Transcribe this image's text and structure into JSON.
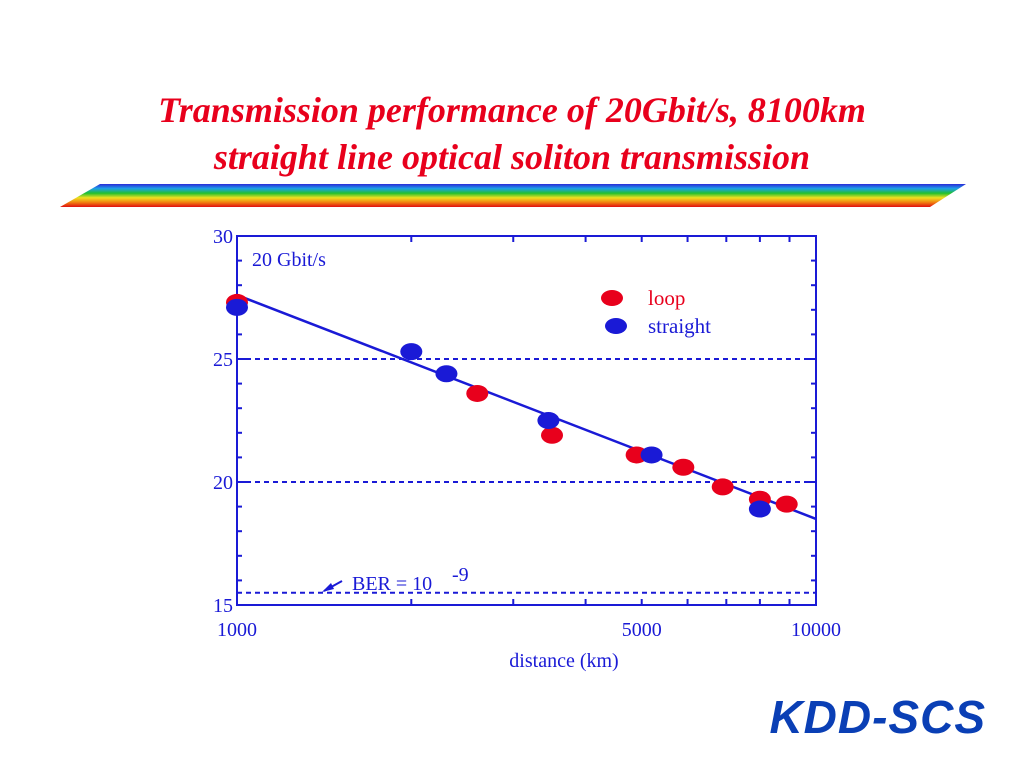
{
  "slide": {
    "title_line1": "Transmission performance of 20Gbit/s, 8100km",
    "title_line2": "straight line optical soliton transmission",
    "logo": "KDD-SCS"
  },
  "colors": {
    "title": "#e8001c",
    "axis": "#1a1ad6",
    "loop": "#e8001c",
    "straight": "#1a1ad6",
    "logo": "#0a3fb5"
  },
  "chart_data": {
    "type": "scatter",
    "xlabel": "distance (km)",
    "ylabel": "",
    "x_scale": "log",
    "xlim": [
      1000,
      10000
    ],
    "ylim": [
      15,
      30
    ],
    "x_tick_labels": [
      {
        "value": 1000,
        "label": "1000"
      },
      {
        "value": 5000,
        "label": "5000"
      },
      {
        "value": 10000,
        "label": "10000"
      }
    ],
    "y_tick_labels": [
      {
        "value": 15,
        "label": "15"
      },
      {
        "value": 20,
        "label": "20"
      },
      {
        "value": 25,
        "label": "25"
      },
      {
        "value": 30,
        "label": "30"
      }
    ],
    "grid_y_dashed": [
      20,
      25
    ],
    "annotation_rate": "20 Gbit/s",
    "ber_label": "BER = 10",
    "ber_exponent": "-9",
    "ber_level": 15.5,
    "legend_position": "top-right",
    "series": [
      {
        "name": "loop",
        "color": "#e8001c",
        "x": [
          1000,
          2600,
          3500,
          4900,
          5900,
          6900,
          8000,
          8900
        ],
        "y": [
          27.3,
          23.6,
          21.9,
          21.1,
          20.6,
          19.8,
          19.3,
          19.1
        ]
      },
      {
        "name": "straight",
        "color": "#1a1ad6",
        "x": [
          1000,
          2000,
          2300,
          3450,
          5200,
          8000
        ],
        "y": [
          27.1,
          25.3,
          24.4,
          22.5,
          21.1,
          18.9
        ]
      }
    ],
    "fit_line": {
      "x": [
        1000,
        10000
      ],
      "y": [
        27.6,
        18.5
      ]
    }
  }
}
